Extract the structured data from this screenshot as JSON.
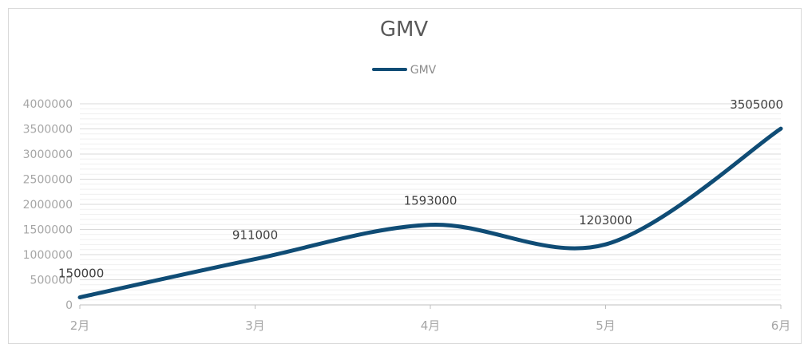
{
  "chart_data": {
    "type": "line",
    "title": "GMV",
    "categories": [
      "2月",
      "3月",
      "4月",
      "5月",
      "6月"
    ],
    "series": [
      {
        "name": "GMV",
        "values": [
          150000,
          911000,
          1593000,
          1203000,
          3505000
        ]
      }
    ],
    "data_labels": [
      "150000",
      "911000",
      "1593000",
      "1203000",
      "3505000"
    ],
    "ylim": [
      0,
      4000000
    ],
    "y_ticks": [
      0,
      500000,
      1000000,
      1500000,
      2000000,
      2500000,
      3000000,
      3500000,
      4000000
    ],
    "y_tick_labels": [
      "0",
      "500000",
      "1000000",
      "1500000",
      "2000000",
      "2500000",
      "3000000",
      "3500000",
      "4000000"
    ],
    "smooth": true,
    "grid": true,
    "legend_position": "top",
    "colors": {
      "line": "#0f4c75",
      "major_grid": "#d9d9d9",
      "minor_grid": "#efefef",
      "axis_text": "#a6a6a6",
      "label_text": "#404040"
    }
  }
}
